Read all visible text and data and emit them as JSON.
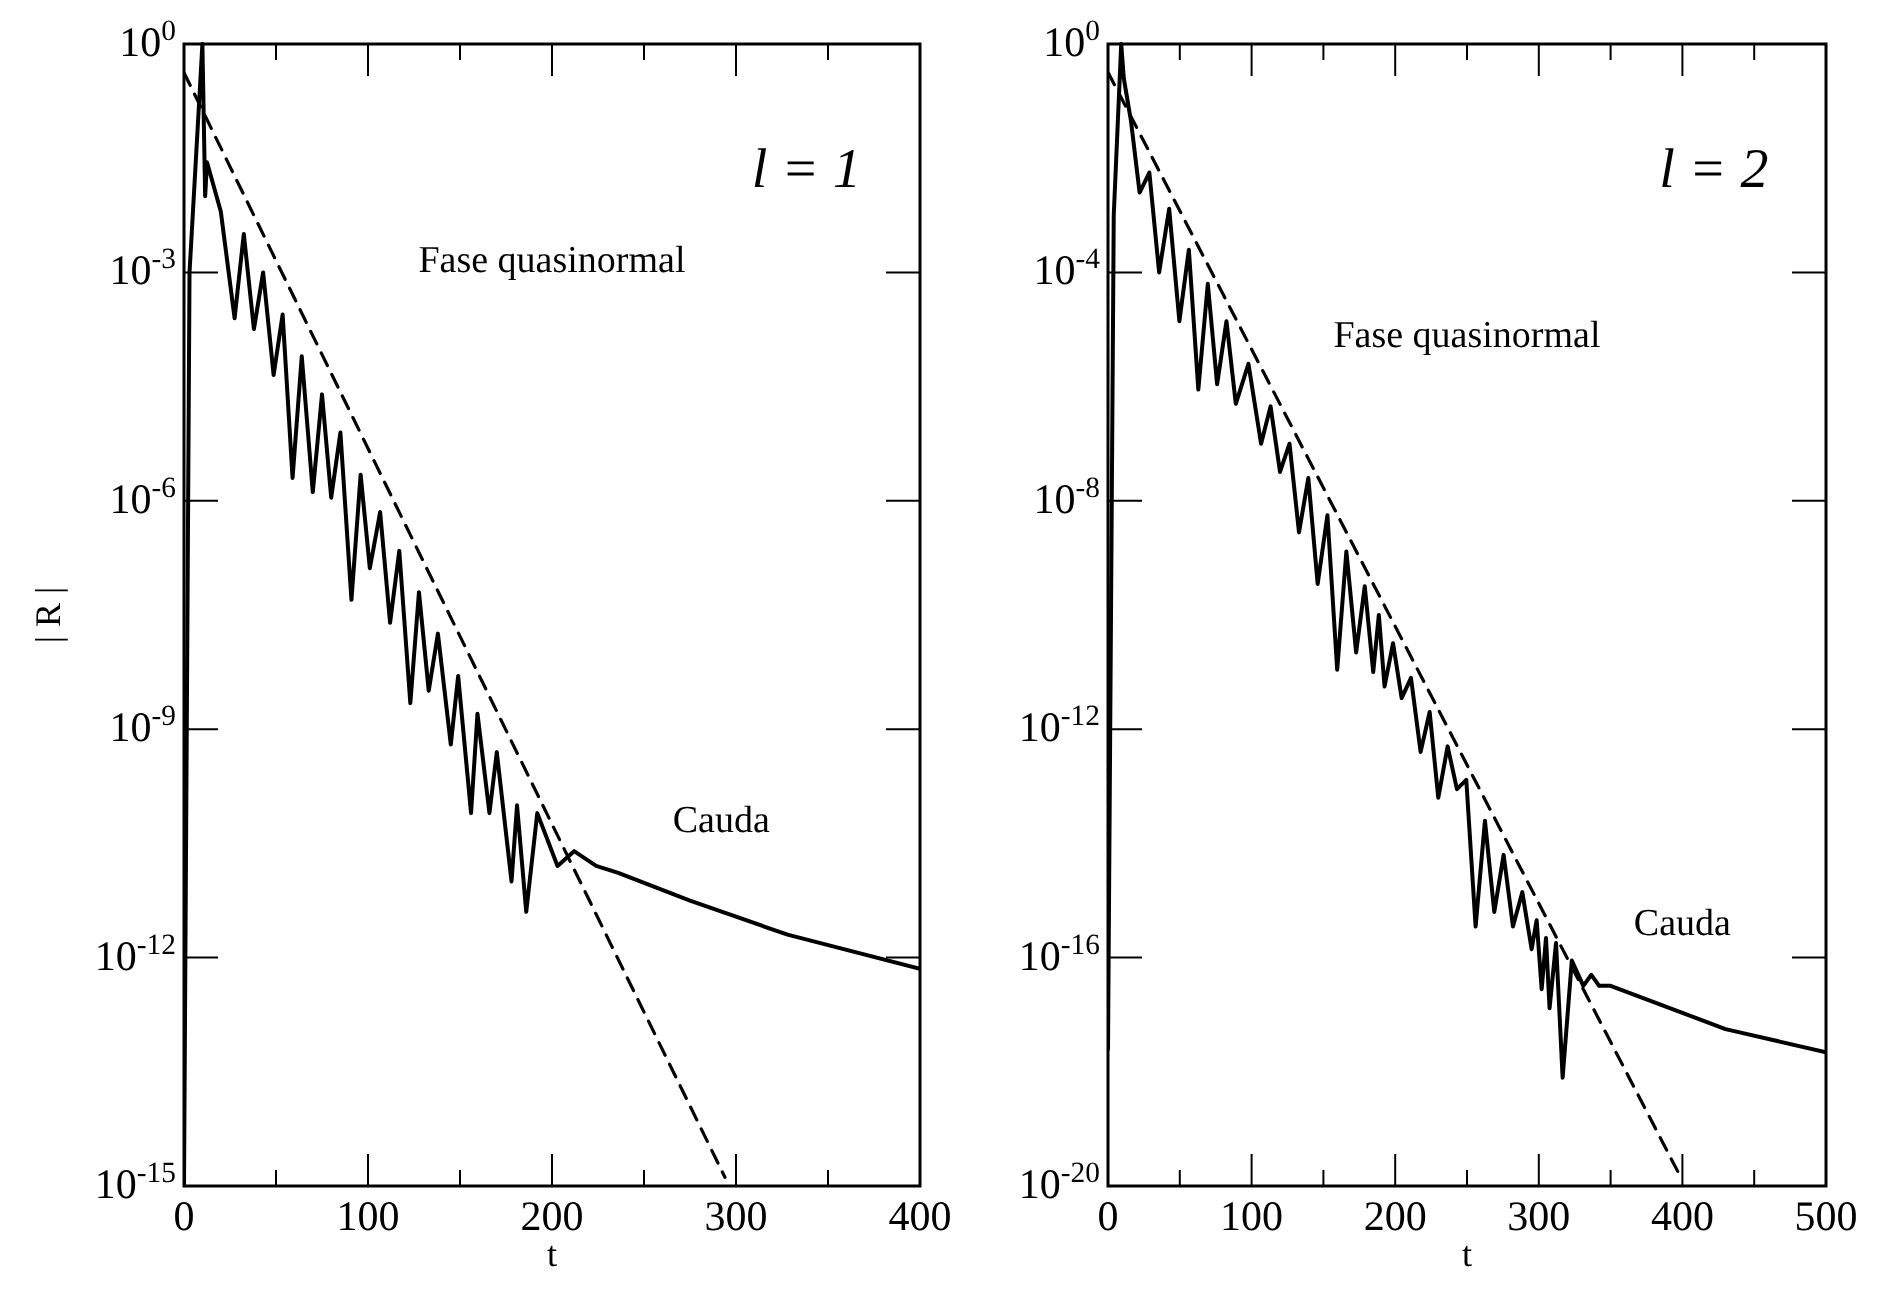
{
  "chart_data": [
    {
      "type": "line",
      "xlabel": "t",
      "ylabel": "| R |",
      "log": "y",
      "xlim": [
        0,
        400
      ],
      "ylim": [
        1e-15,
        1
      ],
      "xticks": [
        0,
        {
          "value": 50,
          "label": null
        },
        100,
        {
          "value": 150,
          "label": null
        },
        200,
        {
          "value": 250,
          "label": null
        },
        300,
        {
          "value": 350,
          "label": null
        },
        400
      ],
      "yticks": [
        {
          "value": 1,
          "label": "10$^{0}$"
        },
        {
          "value": 0.001,
          "label": "10$^{-3}$"
        },
        {
          "value": 1e-06,
          "label": "10$^{-6}$"
        },
        {
          "value": 1e-09,
          "label": "10$^{-9}$"
        },
        {
          "value": 1e-12,
          "label": "10$^{-12}$"
        },
        {
          "value": 1e-15,
          "label": "10$^{-15}$"
        }
      ],
      "annotations": [
        "l = 1",
        "Fase quasinormal",
        "Cauda"
      ],
      "series": [
        {
          "color": "#000000",
          "line_style": "solid",
          "x": [
            0,
            3,
            10,
            11.5,
            12.5,
            20,
            27.5,
            32.5,
            38,
            43,
            48.7,
            53.6,
            59,
            64,
            70,
            75,
            80,
            85,
            91,
            96,
            101,
            106.6,
            112,
            117,
            123,
            127.7,
            133,
            138,
            145,
            149,
            156,
            159.5,
            166,
            170,
            178,
            181,
            186,
            192,
            203,
            212,
            224,
            236,
            275,
            328,
            400
          ],
          "values": [
            1e-15,
            0.001,
            1,
            0.01,
            0.028,
            0.0063,
            0.00025,
            0.0032,
            0.00018,
            0.001,
            4.5e-05,
            0.00028,
            2e-06,
            7.9e-05,
            1.3e-06,
            2.5e-05,
            1.1e-06,
            7.9e-06,
            5e-08,
            2.2e-06,
            1.3e-07,
            7.1e-07,
            2.5e-08,
            2.2e-07,
            2.2e-09,
            6.3e-08,
            3.2e-09,
            1.8e-08,
            6.3e-10,
            5e-09,
            7.9e-11,
            1.6e-09,
            7.9e-11,
            5e-10,
            1e-11,
            1e-10,
            4e-12,
            7.9e-11,
            1.6e-11,
            2.5e-11,
            1.6e-11,
            1.3e-11,
            5.6e-12,
            2e-12,
            7.1e-13
          ]
        },
        {
          "color": "#000000",
          "line_style": "dashed",
          "x": [
            0,
            294
          ],
          "values": [
            0.42,
            1.3e-15
          ]
        }
      ]
    },
    {
      "type": "line",
      "xlabel": "t",
      "log": "y",
      "xlim": [
        0,
        500
      ],
      "ylim": [
        1e-20,
        1
      ],
      "xticks": [
        0,
        {
          "value": 50,
          "label": null
        },
        100,
        {
          "value": 150,
          "label": null
        },
        200,
        {
          "value": 250,
          "label": null
        },
        300,
        {
          "value": 350,
          "label": null
        },
        400,
        {
          "value": 450,
          "label": null
        },
        500
      ],
      "yticks": [
        {
          "value": 1,
          "label": "10$^{0}$"
        },
        {
          "value": 0.0001,
          "label": "10$^{-4}$"
        },
        {
          "value": 1e-08,
          "label": "10$^{-8}$"
        },
        {
          "value": 1e-12,
          "label": "10$^{-12}$"
        },
        {
          "value": 1e-16,
          "label": "10$^{-16}$"
        },
        {
          "value": 1e-20,
          "label": "10$^{-20}$"
        }
      ],
      "annotations": [
        "l = 2",
        "Fase quasinormal",
        "Cauda"
      ],
      "series": [
        {
          "color": "#000000",
          "line_style": "solid",
          "x": [
            0,
            4,
            9.2,
            11,
            16,
            22,
            28.8,
            35.6,
            42.6,
            49.7,
            56.3,
            62.9,
            69.5,
            76,
            82.5,
            89,
            97.8,
            106.6,
            113.2,
            119.8,
            126.4,
            133,
            139.5,
            146,
            152.8,
            159.6,
            166,
            172.8,
            178.8,
            184.7,
            188.6,
            192.6,
            198.5,
            204.5,
            211,
            217.7,
            224,
            230,
            236.5,
            243,
            249.5,
            256,
            262.5,
            269,
            275.5,
            282,
            288.5,
            295,
            298.5,
            302,
            305,
            307.5,
            312,
            316.6,
            323,
            331,
            336.6,
            342,
            350,
            430,
            500
          ],
          "values": [
            2.5e-18,
            0.001,
            1,
            0.25,
            0.045,
            0.0025,
            0.0056,
            0.0001,
            0.0013,
            1.4e-05,
            0.00025,
            8.9e-07,
            6.3e-05,
            1.1e-06,
            1.4e-05,
            5e-07,
            2.5e-06,
            1e-07,
            4.5e-07,
            3.2e-08,
            1e-07,
            2.8e-09,
            2.5e-08,
            3.5e-10,
            5.6e-09,
            1.1e-11,
            1.3e-09,
            2.2e-11,
            3.2e-10,
            1e-11,
            1e-10,
            5.6e-12,
            3.2e-11,
            3.5e-12,
            7.9e-12,
            4e-13,
            2e-12,
            6.3e-14,
            5e-13,
            8.9e-14,
            1.3e-13,
            3.5e-16,
            2.5e-14,
            6.3e-16,
            6.3e-15,
            3.5e-16,
            1.4e-15,
            1.4e-16,
            4.5e-16,
            2.8e-17,
            2.2e-16,
            1.3e-17,
            1.8e-16,
            7.9e-19,
            8.9e-17,
            3.2e-17,
            5e-17,
            3.2e-17,
            3.2e-17,
            5.6e-18,
            2.2e-18
          ]
        },
        {
          "color": "#000000",
          "line_style": "dashed",
          "x": [
            0,
            399
          ],
          "values": [
            0.32,
            1.4e-20
          ]
        }
      ]
    }
  ]
}
